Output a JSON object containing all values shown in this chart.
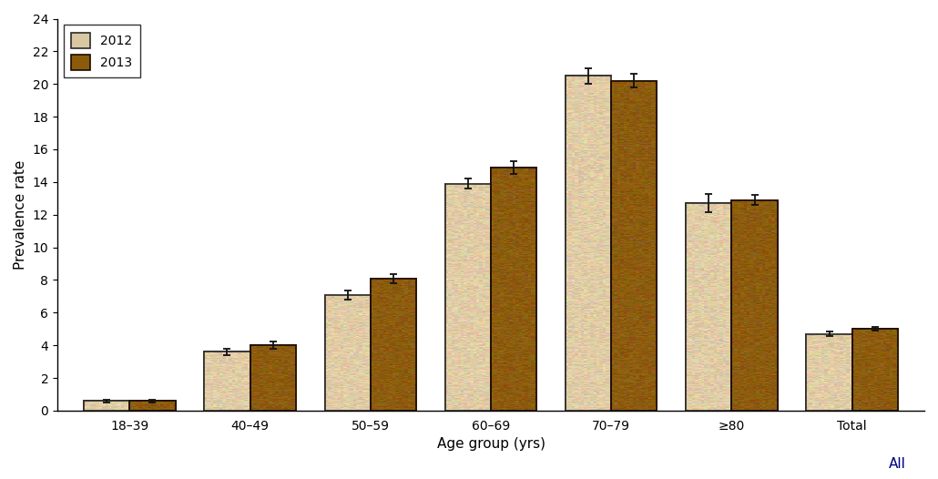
{
  "categories": [
    "18–39",
    "40–49",
    "50–59",
    "60–69",
    "70–79",
    "≥80",
    "Total"
  ],
  "values_2012": [
    0.6,
    3.6,
    7.1,
    13.9,
    20.5,
    12.7,
    4.7
  ],
  "values_2013": [
    0.6,
    4.0,
    8.1,
    14.9,
    20.2,
    12.9,
    5.0
  ],
  "errors_2012": [
    0.09,
    0.18,
    0.28,
    0.32,
    0.48,
    0.55,
    0.12
  ],
  "errors_2013": [
    0.09,
    0.22,
    0.28,
    0.38,
    0.42,
    0.32,
    0.12
  ],
  "color_2012": "#D8C8A2",
  "color_2013": "#8B5A0A",
  "bar_edgecolor_2012": "#2a2a2a",
  "bar_edgecolor_2013": "#1a0a00",
  "bar_width": 0.38,
  "ylim": [
    0,
    24
  ],
  "yticks": [
    0,
    2,
    4,
    6,
    8,
    10,
    12,
    14,
    16,
    18,
    20,
    22,
    24
  ],
  "xlabel": "Age group (yrs)",
  "ylabel": "Prevalence rate",
  "legend_labels": [
    "2012",
    "2013"
  ],
  "xlabel_extra": "All",
  "axis_fontsize": 11,
  "tick_fontsize": 10,
  "legend_fontsize": 10,
  "capsize": 3,
  "elinewidth": 1.3,
  "ecolor": "#111111",
  "capthick": 1.3
}
